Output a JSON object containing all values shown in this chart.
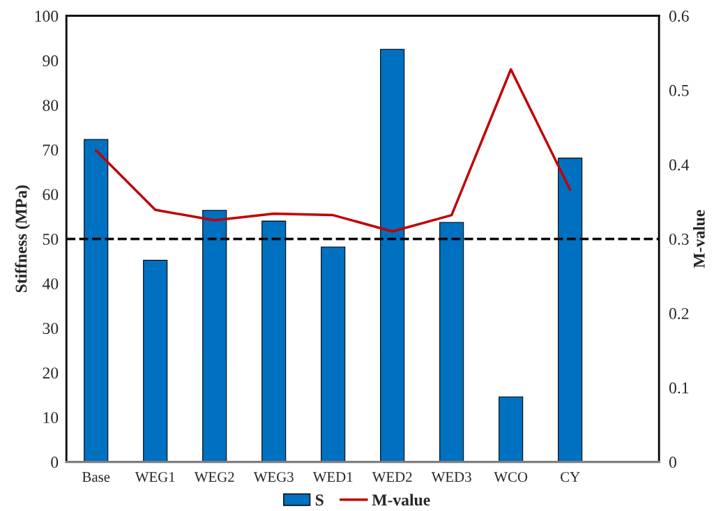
{
  "chart_data": {
    "type": "bar",
    "categories": [
      "Base",
      "WEG1",
      "WEG2",
      "WEG3",
      "WED1",
      "WED2",
      "WED3",
      "WCO",
      "CY",
      null
    ],
    "ylabel": "Stiffness (MPa)",
    "y2label": "M-value",
    "series": [
      {
        "name": "S",
        "color": "#0070c0",
        "values": [
          72.3,
          45.2,
          56.4,
          54.0,
          48.2,
          92.5,
          53.7,
          14.6,
          68.1,
          null
        ]
      },
      {
        "name": "M-value",
        "type": "line",
        "axis": "y2",
        "color": "#c00000",
        "values": [
          0.419,
          0.339,
          0.325,
          0.334,
          0.332,
          0.31,
          0.332,
          0.528,
          0.366,
          null
        ]
      }
    ],
    "ylim": [
      0,
      100
    ],
    "yticks": [
      0,
      10,
      20,
      30,
      40,
      50,
      60,
      70,
      80,
      90,
      100
    ],
    "y2lim": [
      0,
      0.6
    ],
    "y2ticks": [
      0,
      0.1,
      0.2,
      0.3,
      0.4,
      0.5,
      0.6
    ],
    "ref_lines": [
      {
        "axis": "y2",
        "value": 0.3,
        "color": "#000000",
        "line_style": "dashed"
      }
    ],
    "grid": false,
    "legend": "bottom"
  }
}
